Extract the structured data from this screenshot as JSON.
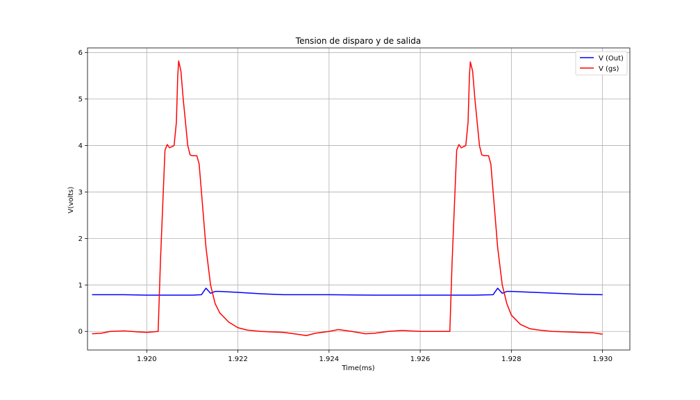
{
  "chart_data": {
    "type": "line",
    "title": "Tension de disparo y de salida",
    "xlabel": "Time(ms)",
    "ylabel": "V(volts)",
    "xlim": [
      1.9187,
      1.9306
    ],
    "ylim": [
      -0.4,
      6.1
    ],
    "xticks": [
      1.92,
      1.922,
      1.924,
      1.926,
      1.928,
      1.93
    ],
    "xtick_labels": [
      "1.920",
      "1.922",
      "1.924",
      "1.926",
      "1.928",
      "1.930"
    ],
    "yticks": [
      0,
      1,
      2,
      3,
      4,
      5,
      6
    ],
    "ytick_labels": [
      "0",
      "1",
      "2",
      "3",
      "4",
      "5",
      "6"
    ],
    "grid": true,
    "legend_position": "upper right",
    "series": [
      {
        "name": "V (Out)",
        "color": "#0000ff",
        "x": [
          1.9188,
          1.9195,
          1.92,
          1.9205,
          1.921,
          1.9212,
          1.9213,
          1.9214,
          1.9215,
          1.9216,
          1.922,
          1.9225,
          1.923,
          1.924,
          1.925,
          1.926,
          1.9268,
          1.9272,
          1.9276,
          1.9277,
          1.9278,
          1.9279,
          1.928,
          1.9285,
          1.929,
          1.9295,
          1.93
        ],
        "values": [
          0.79,
          0.79,
          0.78,
          0.78,
          0.78,
          0.79,
          0.93,
          0.82,
          0.86,
          0.86,
          0.84,
          0.81,
          0.79,
          0.79,
          0.78,
          0.78,
          0.78,
          0.78,
          0.79,
          0.93,
          0.82,
          0.86,
          0.86,
          0.84,
          0.82,
          0.8,
          0.79
        ]
      },
      {
        "name": "V (gs)",
        "color": "#ff0000",
        "x": [
          1.9188,
          1.919,
          1.9192,
          1.9195,
          1.9198,
          1.92,
          1.92025,
          1.9203,
          1.9204,
          1.92045,
          1.9205,
          1.9206,
          1.92065,
          1.92068,
          1.9207,
          1.92075,
          1.9208,
          1.92085,
          1.9209,
          1.92095,
          1.921,
          1.9211,
          1.92115,
          1.9212,
          1.9213,
          1.9214,
          1.9215,
          1.9216,
          1.9218,
          1.922,
          1.9222,
          1.9225,
          1.923,
          1.9233,
          1.9235,
          1.9237,
          1.924,
          1.9242,
          1.9245,
          1.9248,
          1.925,
          1.9253,
          1.9256,
          1.926,
          1.9263,
          1.92665,
          1.9267,
          1.9268,
          1.92685,
          1.9269,
          1.927,
          1.92705,
          1.92708,
          1.9271,
          1.92715,
          1.9272,
          1.92725,
          1.9273,
          1.92735,
          1.9274,
          1.9275,
          1.92755,
          1.9276,
          1.9277,
          1.9278,
          1.9279,
          1.928,
          1.9282,
          1.9284,
          1.9286,
          1.9289,
          1.9292,
          1.9295,
          1.9298,
          1.93
        ],
        "values": [
          -0.05,
          -0.04,
          0.0,
          0.01,
          -0.01,
          -0.02,
          0.0,
          1.5,
          3.9,
          4.02,
          3.95,
          4.0,
          4.5,
          5.5,
          5.82,
          5.6,
          5.0,
          4.5,
          4.0,
          3.8,
          3.78,
          3.78,
          3.6,
          3.0,
          1.8,
          1.0,
          0.6,
          0.4,
          0.2,
          0.08,
          0.03,
          0.0,
          -0.02,
          -0.06,
          -0.09,
          -0.04,
          0.0,
          0.04,
          0.0,
          -0.05,
          -0.04,
          0.0,
          0.02,
          0.0,
          0.0,
          0.0,
          1.5,
          3.9,
          4.02,
          3.95,
          4.0,
          4.5,
          5.5,
          5.8,
          5.6,
          5.0,
          4.5,
          4.0,
          3.8,
          3.78,
          3.78,
          3.6,
          3.0,
          1.8,
          1.0,
          0.6,
          0.35,
          0.15,
          0.06,
          0.03,
          0.0,
          -0.01,
          -0.02,
          -0.03,
          -0.06
        ]
      }
    ]
  }
}
